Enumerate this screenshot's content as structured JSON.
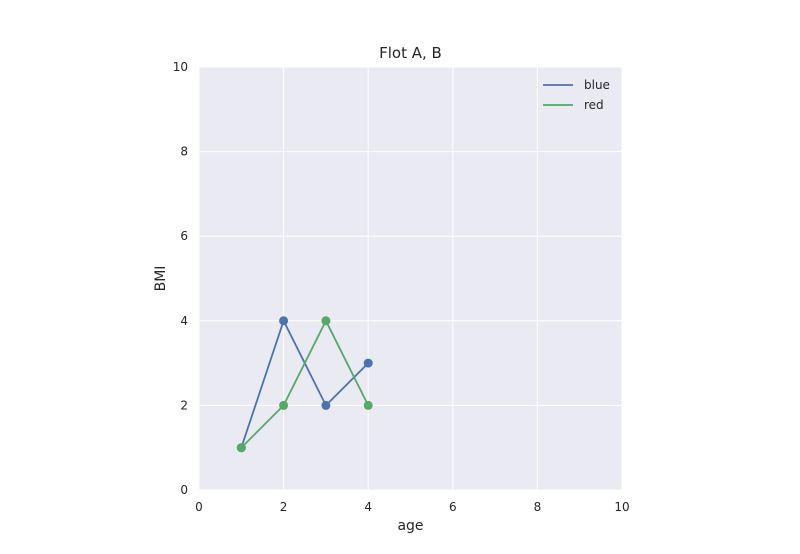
{
  "chart_data": {
    "type": "line",
    "title": "Flot A, B",
    "xlabel": "age",
    "ylabel": "BMI",
    "xlim": [
      0,
      10
    ],
    "ylim": [
      0,
      10
    ],
    "xticks": [
      "0",
      "2",
      "4",
      "6",
      "8",
      "10"
    ],
    "yticks": [
      "0",
      "2",
      "4",
      "6",
      "8",
      "10"
    ],
    "grid": true,
    "legend_position": "top-right",
    "background_color": "#eaeaf2",
    "grid_color": "#ffffff",
    "series": [
      {
        "name": "blue",
        "color": "#4c72b0",
        "marker": "circle",
        "x": [
          1,
          2,
          3,
          4
        ],
        "y": [
          1,
          4,
          2,
          3
        ]
      },
      {
        "name": "red",
        "color": "#55a868",
        "marker": "circle",
        "x": [
          1,
          2,
          3,
          4
        ],
        "y": [
          1,
          2,
          4,
          2
        ]
      }
    ]
  }
}
